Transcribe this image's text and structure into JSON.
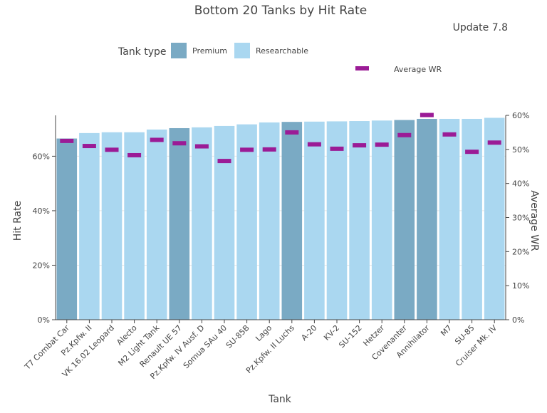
{
  "chart_data": {
    "type": "bar",
    "title": "Bottom 20 Tanks by Hit Rate",
    "subtitle": "Update 7.8",
    "xlabel": "Tank",
    "ylabel": "Hit Rate",
    "y2label": "Average WR",
    "ylim": [
      0,
      0.75
    ],
    "y2lim": [
      0,
      0.6
    ],
    "yticks": [
      "0%",
      "20%",
      "40%",
      "60%"
    ],
    "y2ticks": [
      "0%",
      "10%",
      "20%",
      "30%",
      "40%",
      "50%",
      "60%"
    ],
    "legend": {
      "title": "Tank type",
      "placement": "top-left",
      "entries": [
        "Premium",
        "Researchable"
      ],
      "line_entry": "Average WR"
    },
    "colors": {
      "Premium": "#7aaac4",
      "Researchable": "#aad7f0",
      "Average WR": "#9b1b96",
      "grid": "#e6e6e6"
    },
    "categories": [
      "T7 Combat Car",
      "Pz.Kpfw. II",
      "VK 16.02 Leopard",
      "Alecto",
      "M2 Light Tank",
      "Renault UE 57",
      "Pz.Kpfw. IV Ausf. D",
      "Somua SAu 40",
      "SU-85B",
      "Lago",
      "Pz.Kpfw. II Luchs",
      "A-20",
      "KV-2",
      "SU-152",
      "Hetzer",
      "Covenanter",
      "Annihilator",
      "M7",
      "SU-85",
      "Cruiser Mk. IV"
    ],
    "tank_type": [
      "Premium",
      "Researchable",
      "Researchable",
      "Researchable",
      "Researchable",
      "Premium",
      "Researchable",
      "Researchable",
      "Researchable",
      "Researchable",
      "Premium",
      "Researchable",
      "Researchable",
      "Researchable",
      "Researchable",
      "Premium",
      "Premium",
      "Researchable",
      "Researchable",
      "Researchable"
    ],
    "series": [
      {
        "name": "Hit Rate",
        "values": [
          0.665,
          0.685,
          0.688,
          0.688,
          0.698,
          0.703,
          0.706,
          0.711,
          0.717,
          0.724,
          0.726,
          0.727,
          0.728,
          0.729,
          0.731,
          0.733,
          0.737,
          0.737,
          0.737,
          0.741
        ]
      },
      {
        "name": "Average WR",
        "values": [
          0.525,
          0.51,
          0.499,
          0.483,
          0.528,
          0.518,
          0.509,
          0.466,
          0.499,
          0.5,
          0.55,
          0.515,
          0.502,
          0.512,
          0.514,
          0.542,
          0.601,
          0.544,
          0.493,
          0.52
        ]
      }
    ]
  }
}
